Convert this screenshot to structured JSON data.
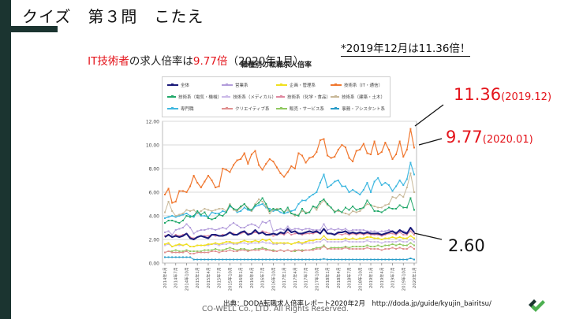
{
  "slide": {
    "title": "クイズ　第３問　こたえ",
    "headline_parts": [
      {
        "text": "IT技術者",
        "highlight": true
      },
      {
        "text": "の求人倍率は",
        "highlight": false
      },
      {
        "text": "9.77倍",
        "highlight": true
      },
      {
        "text": "（2020年1月）",
        "highlight": false
      }
    ],
    "note": "*2019年12月は11.36倍！",
    "annotations": {
      "peak_value": "11.36",
      "peak_date": "(2019.12)",
      "latest_value": "9.77",
      "latest_date": "(2020.01)",
      "overall_value": "2.60"
    },
    "source": "出典：DODA転職求人倍率レポート2020年2月　http://doda.jp/guide/kyujin_bairitsu/",
    "copyright": "CO-WELL Co., LTD. All Rights Reserved.",
    "colors": {
      "accent_dark": "#1b3430",
      "highlight_red": "#e4141b"
    }
  },
  "chart_data": {
    "type": "line",
    "title": "職種別の転職求人倍率",
    "xlabel": "",
    "ylabel": "",
    "ylim": [
      0,
      12
    ],
    "yticks": [
      "0.00",
      "2.00",
      "4.00",
      "6.00",
      "8.00",
      "10.00",
      "12.00"
    ],
    "grid": true,
    "legend_position": "top",
    "x_tick_labels": [
      "2014年4月",
      "2014年7月",
      "2014年10月",
      "2015年1月",
      "2015年4月",
      "2015年7月",
      "2015年10月",
      "2016年1月",
      "2016年4月",
      "2016年7月",
      "2016年10月",
      "2017年1月",
      "2017年4月",
      "2017年7月",
      "2017年10月",
      "2018年1月",
      "2018年4月",
      "2018年7月",
      "2018年10月",
      "2019年1月",
      "2019年4月",
      "2019年7月",
      "2019年10月",
      "2020年1月"
    ],
    "points_per_tick": 3,
    "series": [
      {
        "name": "全体",
        "color": "#1a1a7a",
        "width": 2,
        "values": [
          2.2,
          2.4,
          2.2,
          2.3,
          2.2,
          2.3,
          2.5,
          2.1,
          2.0,
          2.2,
          2.3,
          2.2,
          2.1,
          2.4,
          2.4,
          2.3,
          2.3,
          2.4,
          2.6,
          2.4,
          2.4,
          2.6,
          2.7,
          2.4,
          2.5,
          2.8,
          2.5,
          2.6,
          2.4,
          2.4,
          2.5,
          2.4,
          2.6,
          2.5,
          2.9,
          2.6,
          2.7,
          2.5,
          2.5,
          2.6,
          2.7,
          2.6,
          2.7,
          2.5,
          2.9,
          2.5,
          2.5,
          2.4,
          2.6,
          2.6,
          2.7,
          2.5,
          2.6,
          2.5,
          2.6,
          2.5,
          2.6,
          2.5,
          2.5,
          2.5,
          2.4,
          2.5,
          2.6,
          2.7,
          2.5,
          2.8,
          2.6,
          2.5,
          3.0,
          2.6
        ]
      },
      {
        "name": "営業系",
        "color": "#b39ddb",
        "width": 1,
        "values": [
          2.6,
          2.7,
          2.4,
          2.8,
          2.9,
          3.0,
          3.3,
          3.0,
          2.5,
          2.7,
          2.8,
          2.8,
          2.9,
          2.9,
          2.8,
          2.9,
          3.0,
          2.9,
          3.2,
          3.4,
          3.2,
          3.0,
          3.0,
          3.2,
          3.3,
          3.2,
          3.0,
          3.5,
          3.4,
          3.6,
          2.7,
          2.8,
          2.9,
          2.8,
          3.1,
          2.8,
          2.9,
          2.9,
          2.8,
          2.9,
          2.9,
          2.8,
          2.8,
          2.8,
          3.3,
          2.8,
          2.9,
          2.8,
          2.9,
          2.8,
          2.9,
          2.7,
          2.8,
          2.8,
          2.8,
          2.8,
          2.7,
          2.7,
          2.7,
          2.6,
          2.7,
          2.7,
          2.8,
          2.7,
          2.6,
          2.7,
          2.7,
          2.6,
          2.9,
          2.6
        ]
      },
      {
        "name": "企画・管理系",
        "color": "#f0e020",
        "width": 1.2,
        "values": [
          1.6,
          1.7,
          1.4,
          1.5,
          1.6,
          1.5,
          1.6,
          1.4,
          1.4,
          1.5,
          1.5,
          1.5,
          1.6,
          1.6,
          1.7,
          1.6,
          1.7,
          1.8,
          1.8,
          1.7,
          1.7,
          1.8,
          1.9,
          1.8,
          1.8,
          1.9,
          1.8,
          2.0,
          1.9,
          2.0,
          1.7,
          1.7,
          1.7,
          1.7,
          1.7,
          1.6,
          1.7,
          1.8,
          1.7,
          1.8,
          1.9,
          1.9,
          2.0,
          2.0,
          2.3,
          2.0,
          2.0,
          2.0,
          2.0,
          2.0,
          2.1,
          2.0,
          2.1,
          2.0,
          2.1,
          2.1,
          2.2,
          2.2,
          2.1,
          2.1,
          2.0,
          2.1,
          2.1,
          2.2,
          2.1,
          2.2,
          2.1,
          2.1,
          2.3,
          2.1
        ]
      },
      {
        "name": "技術系（IT・通信）",
        "color": "#f07830",
        "width": 1.2,
        "values": [
          5.8,
          6.3,
          5.1,
          5.2,
          6.1,
          6.1,
          6.0,
          6.5,
          7.4,
          6.8,
          6.4,
          6.9,
          7.4,
          7.0,
          6.4,
          6.5,
          8.0,
          7.9,
          7.7,
          8.3,
          8.7,
          8.8,
          9.3,
          8.4,
          9.2,
          9.5,
          8.3,
          7.9,
          8.4,
          8.8,
          8.6,
          8.1,
          7.6,
          7.3,
          7.7,
          8.2,
          8.0,
          9.3,
          9.1,
          8.5,
          8.9,
          9.0,
          9.4,
          10.4,
          10.5,
          9.1,
          8.9,
          9.0,
          9.6,
          10.0,
          9.8,
          8.9,
          8.6,
          9.5,
          9.6,
          10.1,
          9.3,
          9.2,
          10.3,
          9.2,
          9.4,
          10.2,
          9.6,
          8.8,
          9.2,
          10.3,
          9.0,
          9.6,
          11.36,
          9.77
        ]
      },
      {
        "name": "技術系（電気・機械）",
        "color": "#22a86a",
        "width": 1,
        "values": [
          3.4,
          3.6,
          3.6,
          3.5,
          3.4,
          3.6,
          4.0,
          3.9,
          4.0,
          4.4,
          4.1,
          4.3,
          3.8,
          3.7,
          3.8,
          4.1,
          4.0,
          4.3,
          4.9,
          4.6,
          4.5,
          4.8,
          5.0,
          4.6,
          4.5,
          4.9,
          5.1,
          5.5,
          5.0,
          4.4,
          4.6,
          4.5,
          4.6,
          4.3,
          4.7,
          4.2,
          4.1,
          4.0,
          4.6,
          4.2,
          4.3,
          4.8,
          4.7,
          5.2,
          5.4,
          5.0,
          4.7,
          4.3,
          4.5,
          4.3,
          4.7,
          4.5,
          4.8,
          4.5,
          4.6,
          4.7,
          5.3,
          4.9,
          4.4,
          4.4,
          4.3,
          4.5,
          4.7,
          4.6,
          4.6,
          4.9,
          4.7,
          4.7,
          5.5,
          4.5
        ]
      },
      {
        "name": "技術系（メディカル）",
        "color": "#ccbbe8",
        "width": 1,
        "values": [
          1.5,
          1.6,
          1.4,
          1.5,
          1.5,
          1.5,
          1.6,
          1.4,
          1.4,
          1.5,
          1.5,
          1.5,
          1.5,
          1.6,
          1.6,
          1.5,
          1.6,
          1.6,
          1.7,
          1.6,
          1.6,
          1.7,
          1.7,
          1.6,
          1.7,
          1.7,
          1.7,
          1.8,
          1.7,
          1.7,
          1.6,
          1.6,
          1.7,
          1.6,
          1.7,
          1.6,
          1.7,
          1.7,
          1.6,
          1.7,
          1.7,
          1.7,
          1.8,
          1.8,
          2.0,
          1.8,
          1.8,
          1.8,
          1.8,
          1.8,
          1.9,
          1.8,
          1.8,
          1.8,
          1.8,
          1.8,
          1.9,
          1.8,
          1.8,
          1.8,
          1.7,
          1.8,
          1.8,
          1.8,
          1.8,
          1.9,
          1.8,
          1.8,
          2.0,
          1.8
        ]
      },
      {
        "name": "技術系（化学・食品）",
        "color": "#e088a0",
        "width": 1,
        "values": [
          2.3,
          2.4,
          2.2,
          2.4,
          2.3,
          2.4,
          2.5,
          2.2,
          2.1,
          2.2,
          2.3,
          2.3,
          2.3,
          2.4,
          2.3,
          2.3,
          2.4,
          2.4,
          2.6,
          2.5,
          2.4,
          2.5,
          2.6,
          2.5,
          2.5,
          2.6,
          2.5,
          2.7,
          2.6,
          2.5,
          2.3,
          2.4,
          2.5,
          2.4,
          2.6,
          2.4,
          2.5,
          2.5,
          2.4,
          2.5,
          2.5,
          2.5,
          2.6,
          2.5,
          2.9,
          2.5,
          2.5,
          2.4,
          2.5,
          2.4,
          2.5,
          2.4,
          2.5,
          2.4,
          2.5,
          2.4,
          2.5,
          2.4,
          2.4,
          2.4,
          2.3,
          2.4,
          2.5,
          2.5,
          2.4,
          2.6,
          2.4,
          2.4,
          2.7,
          2.4
        ]
      },
      {
        "name": "技術系（建築・土木）",
        "color": "#c8b898",
        "width": 1,
        "values": [
          4.3,
          5.2,
          4.4,
          4.0,
          4.1,
          4.2,
          4.5,
          4.4,
          4.5,
          4.2,
          4.4,
          4.6,
          4.5,
          4.4,
          4.5,
          4.6,
          4.6,
          4.4,
          5.0,
          4.5,
          4.4,
          4.7,
          5.0,
          4.7,
          4.4,
          5.0,
          5.4,
          5.2,
          4.8,
          4.2,
          4.5,
          4.6,
          4.6,
          4.3,
          4.5,
          4.2,
          4.0,
          4.1,
          4.4,
          4.3,
          4.3,
          4.8,
          4.5,
          5.0,
          5.3,
          4.9,
          4.7,
          4.4,
          4.4,
          4.3,
          4.2,
          4.1,
          4.4,
          4.3,
          4.4,
          4.7,
          5.0,
          4.9,
          4.8,
          4.7,
          4.7,
          4.9,
          5.0,
          5.6,
          5.5,
          5.8,
          5.6,
          6.4,
          7.6,
          6.0
        ]
      },
      {
        "name": "専門職",
        "color": "#40b8e0",
        "width": 1.2,
        "values": [
          3.8,
          3.9,
          4.0,
          3.9,
          4.0,
          4.1,
          4.2,
          4.0,
          3.9,
          4.3,
          4.0,
          4.0,
          3.9,
          4.3,
          4.2,
          4.2,
          4.4,
          4.3,
          4.8,
          4.6,
          4.3,
          4.4,
          4.7,
          4.5,
          4.4,
          4.8,
          4.9,
          5.0,
          4.7,
          4.6,
          4.4,
          4.5,
          4.3,
          4.2,
          4.3,
          4.4,
          4.5,
          5.0,
          5.3,
          5.3,
          5.6,
          5.8,
          6.0,
          6.8,
          7.5,
          6.4,
          6.6,
          6.9,
          7.0,
          6.5,
          6.5,
          6.0,
          6.2,
          6.0,
          5.8,
          6.2,
          6.8,
          6.0,
          6.9,
          7.2,
          6.6,
          6.8,
          6.6,
          6.1,
          6.5,
          7.0,
          6.6,
          7.1,
          8.5,
          7.5
        ]
      },
      {
        "name": "クリエイティブ系",
        "color": "#e09090",
        "width": 1,
        "values": [
          0.9,
          1.0,
          0.9,
          0.9,
          0.9,
          0.9,
          1.0,
          0.8,
          0.8,
          0.9,
          0.9,
          0.9,
          0.9,
          1.0,
          1.0,
          0.9,
          1.0,
          1.0,
          1.1,
          1.0,
          1.0,
          1.1,
          1.1,
          1.0,
          1.1,
          1.1,
          1.1,
          1.2,
          1.1,
          1.1,
          1.0,
          1.0,
          1.1,
          1.0,
          1.1,
          1.0,
          1.1,
          1.1,
          1.0,
          1.1,
          1.1,
          1.1,
          1.2,
          1.2,
          1.4,
          1.2,
          1.2,
          1.2,
          1.2,
          1.2,
          1.3,
          1.2,
          1.2,
          1.2,
          1.2,
          1.2,
          1.3,
          1.2,
          1.2,
          1.2,
          1.1,
          1.2,
          1.2,
          1.3,
          1.2,
          1.3,
          1.2,
          1.2,
          1.4,
          1.2
        ]
      },
      {
        "name": "販売・サービス系",
        "color": "#90c860",
        "width": 1,
        "values": [
          0.9,
          1.0,
          1.0,
          1.1,
          1.0,
          1.0,
          1.1,
          1.0,
          1.0,
          1.0,
          1.0,
          1.1,
          1.1,
          1.1,
          1.2,
          1.1,
          1.1,
          1.2,
          1.3,
          1.2,
          1.1,
          1.2,
          1.2,
          1.1,
          1.1,
          1.2,
          1.2,
          1.3,
          1.2,
          1.1,
          1.1,
          1.0,
          1.1,
          1.0,
          1.1,
          1.0,
          1.0,
          1.1,
          1.1,
          1.1,
          1.1,
          1.2,
          1.3,
          1.3,
          1.5,
          1.2,
          1.3,
          1.3,
          1.3,
          1.3,
          1.4,
          1.3,
          1.4,
          1.4,
          1.4,
          1.4,
          1.5,
          1.4,
          1.4,
          1.5,
          1.4,
          1.5,
          1.5,
          1.6,
          1.5,
          1.6,
          1.5,
          1.5,
          1.7,
          1.5
        ]
      },
      {
        "name": "事務・アシスタント系",
        "color": "#2a9cc8",
        "width": 1,
        "values": [
          0.5,
          0.5,
          0.5,
          0.5,
          0.5,
          0.5,
          0.5,
          0.5,
          0.3,
          0.3,
          0.3,
          0.3,
          0.3,
          0.3,
          0.3,
          0.3,
          0.3,
          0.3,
          0.3,
          0.3,
          0.3,
          0.3,
          0.3,
          0.3,
          0.3,
          0.3,
          0.3,
          0.3,
          0.3,
          0.3,
          0.3,
          0.3,
          0.3,
          0.3,
          0.3,
          0.3,
          0.3,
          0.3,
          0.3,
          0.3,
          0.3,
          0.3,
          0.3,
          0.3,
          0.35,
          0.3,
          0.3,
          0.3,
          0.3,
          0.3,
          0.3,
          0.3,
          0.3,
          0.3,
          0.3,
          0.3,
          0.3,
          0.3,
          0.3,
          0.3,
          0.3,
          0.3,
          0.3,
          0.3,
          0.3,
          0.3,
          0.3,
          0.3,
          0.4,
          0.3
        ]
      }
    ]
  }
}
